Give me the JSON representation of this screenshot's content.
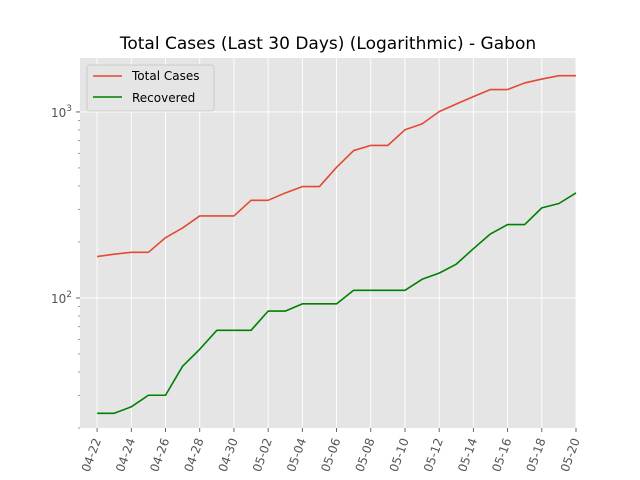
{
  "chart_data": {
    "type": "line",
    "title": "Total Cases (Last 30 Days) (Logarithmic) - Gabon",
    "xlabel": "",
    "ylabel": "",
    "y_scale": "log",
    "ylim": [
      20,
      1950
    ],
    "xlim": [
      "2020-04-21",
      "2020-05-20"
    ],
    "grid": true,
    "legend_position": "top-left",
    "x_tick_labels": [
      "04-22",
      "04-24",
      "04-26",
      "04-28",
      "04-30",
      "05-02",
      "05-04",
      "05-06",
      "05-08",
      "05-10",
      "05-12",
      "05-14",
      "05-16",
      "05-18",
      "05-20"
    ],
    "y_tick_labels": [
      {
        "value": 100,
        "base": "10",
        "exp": "2"
      },
      {
        "value": 1000,
        "base": "10",
        "exp": "3"
      }
    ],
    "x": [
      "2020-04-22",
      "2020-04-23",
      "2020-04-24",
      "2020-04-25",
      "2020-04-26",
      "2020-04-27",
      "2020-04-28",
      "2020-04-29",
      "2020-04-30",
      "2020-05-01",
      "2020-05-02",
      "2020-05-03",
      "2020-05-04",
      "2020-05-05",
      "2020-05-06",
      "2020-05-07",
      "2020-05-08",
      "2020-05-09",
      "2020-05-10",
      "2020-05-11",
      "2020-05-12",
      "2020-05-13",
      "2020-05-14",
      "2020-05-15",
      "2020-05-16",
      "2020-05-17",
      "2020-05-18",
      "2020-05-19",
      "2020-05-20"
    ],
    "series": [
      {
        "name": "Total Cases",
        "color": "#e24a33",
        "values": [
          167,
          172,
          176,
          176,
          211,
          238,
          276,
          276,
          276,
          335,
          335,
          367,
          397,
          397,
          504,
          620,
          661,
          661,
          802,
          863,
          1004,
          1104,
          1209,
          1320,
          1320,
          1432,
          1502,
          1567,
          1567
        ]
      },
      {
        "name": "Recovered",
        "color": "#008000",
        "values": [
          24,
          24,
          26,
          30,
          30,
          43,
          53,
          67,
          67,
          67,
          85,
          85,
          93,
          93,
          93,
          110,
          110,
          110,
          110,
          126,
          136,
          152,
          184,
          221,
          248,
          248,
          305,
          322,
          367
        ]
      }
    ]
  },
  "colors": {
    "plot_background": "#e5e5e5",
    "grid": "#ffffff",
    "text": "#555555"
  }
}
